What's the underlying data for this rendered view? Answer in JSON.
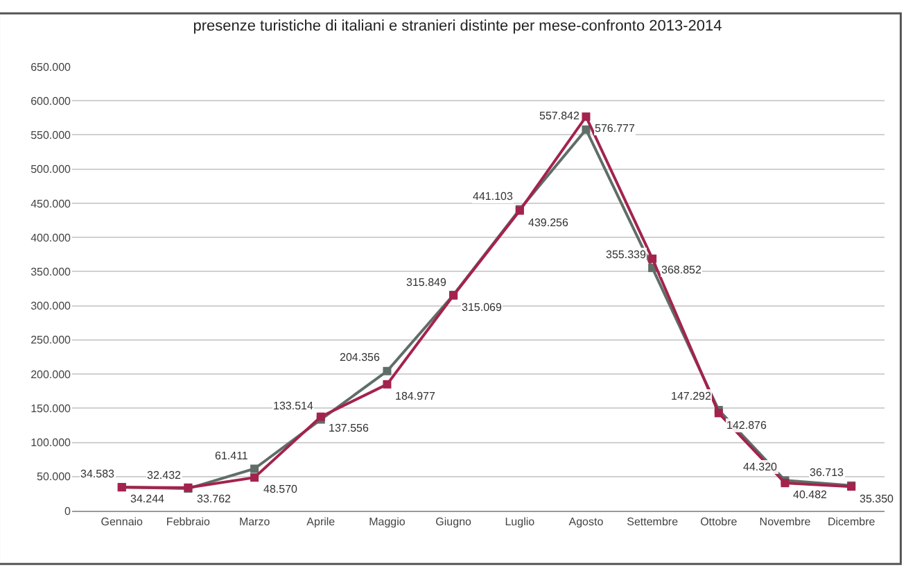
{
  "chart_data": {
    "type": "line",
    "title": "presenze turistiche di italiani e stranieri distinte per mese-confronto 2013-2014",
    "categories": [
      "Gennaio",
      "Febbraio",
      "Marzo",
      "Aprile",
      "Maggio",
      "Giugno",
      "Luglio",
      "Agosto",
      "Settembre",
      "Ottobre",
      "Novembre",
      "Dicembre"
    ],
    "series": [
      {
        "color": "#5f6e66",
        "values": [
          34583,
          32432,
          61411,
          133514,
          204356,
          315849,
          441103,
          557842,
          355339,
          147292,
          44320,
          36713
        ],
        "value_labels": [
          "34.583",
          "32.432",
          "61.411",
          "133.514",
          "204.356",
          "315.849",
          "441.103",
          "557.842",
          "355.339",
          "147.292",
          "44.320",
          "36.713"
        ]
      },
      {
        "color": "#a3234c",
        "values": [
          34244,
          33762,
          48570,
          137556,
          184977,
          315069,
          439256,
          576777,
          368852,
          142876,
          40482,
          35350
        ],
        "value_labels": [
          "34.244",
          "33.762",
          "48.570",
          "137.556",
          "184.977",
          "315.069",
          "439.256",
          "576.777",
          "368.852",
          "142.876",
          "40.482",
          "35.350"
        ]
      }
    ],
    "ylim": [
      0,
      650000
    ],
    "yticks": [
      {
        "value": 0,
        "label": "0"
      },
      {
        "value": 50000,
        "label": "50.000"
      },
      {
        "value": 100000,
        "label": "100.000"
      },
      {
        "value": 150000,
        "label": "150.000"
      },
      {
        "value": 200000,
        "label": "200.000"
      },
      {
        "value": 250000,
        "label": "250.000"
      },
      {
        "value": 300000,
        "label": "300.000"
      },
      {
        "value": 350000,
        "label": "350.000"
      },
      {
        "value": 400000,
        "label": "400.000"
      },
      {
        "value": 450000,
        "label": "450.000"
      },
      {
        "value": 500000,
        "label": "500.000"
      },
      {
        "value": 550000,
        "label": "550.000"
      },
      {
        "value": 600000,
        "label": "600.000"
      },
      {
        "value": 650000,
        "label": "650.000"
      }
    ],
    "grid": "y",
    "marker": "square",
    "line_style": "solid"
  }
}
